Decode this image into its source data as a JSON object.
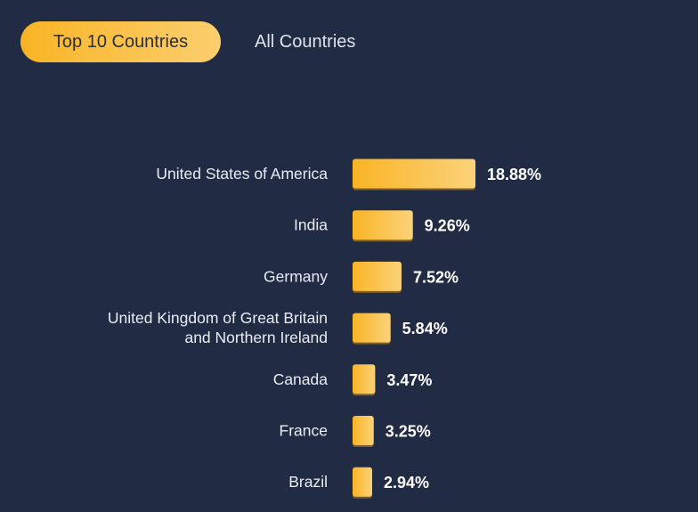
{
  "tabs": [
    {
      "label": "Top 10 Countries",
      "active": true
    },
    {
      "label": "All Countries",
      "active": false
    }
  ],
  "colors": {
    "background": "#212b44",
    "bar_start": "#f9b425",
    "bar_end": "#fbd27a",
    "bar_shadow": "#c98a15"
  },
  "chart_data": {
    "type": "bar",
    "orientation": "horizontal",
    "categories": [
      [
        "United States of America"
      ],
      [
        "India"
      ],
      [
        "Germany"
      ],
      [
        "United Kingdom of Great Britain",
        "and Northern Ireland"
      ],
      [
        "Canada"
      ],
      [
        "France"
      ],
      [
        "Brazil"
      ]
    ],
    "values": [
      18.88,
      9.26,
      7.52,
      5.84,
      3.47,
      3.25,
      2.94
    ],
    "value_labels": [
      "18.88%",
      "9.26%",
      "7.52%",
      "5.84%",
      "3.47%",
      "3.25%",
      "2.94%"
    ],
    "unit": "%"
  }
}
